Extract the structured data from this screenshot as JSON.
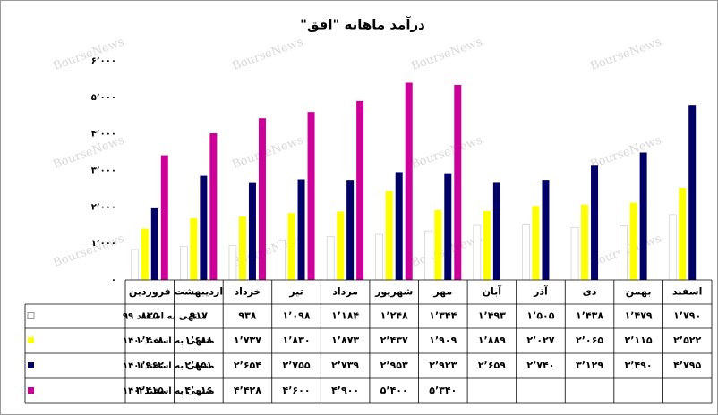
{
  "chart_data": {
    "type": "bar",
    "title": "درآمد ماهانه \"افق\"",
    "watermark": "BourseNews",
    "categories": [
      "فروردین",
      "اردیبهشت",
      "خرداد",
      "تیر",
      "مرداد",
      "شهریور",
      "مهر",
      "آبان",
      "آذر",
      "دی",
      "بهمن",
      "اسفند"
    ],
    "series": [
      {
        "name": "منتهی به اسفند ۹۹",
        "color": "#ffffff",
        "values": [
          835,
          917,
          938,
          1098,
          1184,
          1248,
          1344,
          1493,
          1505,
          1438,
          1479,
          1790
        ],
        "value_labels": [
          "۸۳۵",
          "۹۱۷",
          "۹۳۸",
          "۱٬۰۹۸",
          "۱٬۱۸۴",
          "۱٬۲۴۸",
          "۱٬۳۴۴",
          "۱٬۴۹۳",
          "۱٬۵۰۵",
          "۱٬۴۳۸",
          "۱٬۴۷۹",
          "۱٬۷۹۰"
        ]
      },
      {
        "name": "منتهی به اسفند۱۴۰۰",
        "color": "#ffff00",
        "values": [
          1408,
          1688,
          1737,
          1830,
          1873,
          2437,
          1909,
          1889,
          2027,
          2065,
          2115,
          2522
        ],
        "value_labels": [
          "۱٬۴۰۸",
          "۱٬۶۸۸",
          "۱٬۷۳۷",
          "۱٬۸۳۰",
          "۱٬۸۷۳",
          "۲٬۴۳۷",
          "۱٬۹۰۹",
          "۱٬۸۸۹",
          "۲٬۰۲۷",
          "۲٬۰۶۵",
          "۲٬۱۱۵",
          "۲٬۵۲۲"
        ]
      },
      {
        "name": "منتهی به اسفند۱۴۰۱",
        "color": "#000066",
        "values": [
          1962,
          2851,
          2654,
          2755,
          2739,
          2953,
          2923,
          2659,
          2740,
          3129,
          3490,
          4795
        ],
        "value_labels": [
          "۱٬۹۶۲",
          "۲٬۸۵۱",
          "۲٬۶۵۴",
          "۲٬۷۵۵",
          "۲٬۷۳۹",
          "۲٬۹۵۳",
          "۲٬۹۲۳",
          "۲٬۶۵۹",
          "۲٬۷۴۰",
          "۳٬۱۲۹",
          "۳٬۴۹۰",
          "۴٬۷۹۵"
        ]
      },
      {
        "name": "منتهی به اسفند۱۴۰۲",
        "color": "#cc0099",
        "values": [
          3415,
          4016,
          4428,
          4600,
          4900,
          5400,
          5340,
          null,
          null,
          null,
          null,
          null
        ],
        "value_labels": [
          "۳٬۴۱۵",
          "۴٬۰۱۶",
          "۴٬۴۲۸",
          "۴٬۶۰۰",
          "۴٬۹۰۰",
          "۵٬۴۰۰",
          "۵٬۳۴۰",
          null,
          null,
          null,
          null,
          null
        ]
      }
    ],
    "ylim": [
      0,
      6000
    ],
    "yticks": [
      {
        "value": 0,
        "label": "۰"
      },
      {
        "value": 1000,
        "label": "۱٬۰۰۰"
      },
      {
        "value": 2000,
        "label": "۲٬۰۰۰"
      },
      {
        "value": 3000,
        "label": "۳٬۰۰۰"
      },
      {
        "value": 4000,
        "label": "۴٬۰۰۰"
      },
      {
        "value": 5000,
        "label": "۵٬۰۰۰"
      },
      {
        "value": 6000,
        "label": "۶٬۰۰۰"
      }
    ],
    "grid": false
  }
}
